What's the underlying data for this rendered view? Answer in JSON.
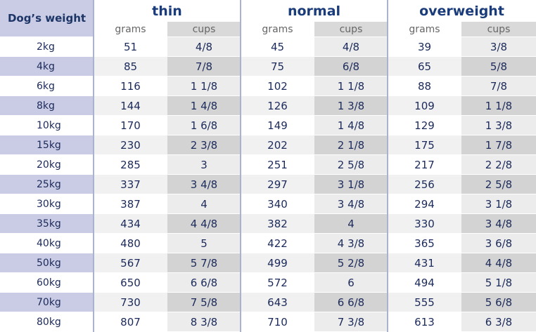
{
  "header": {
    "title": "Dog’s weight",
    "groups": [
      "thin",
      "normal",
      "overweight"
    ],
    "subheaders": [
      "grams",
      "cups"
    ]
  },
  "table": {
    "rows": [
      [
        "2kg",
        51,
        "4/8",
        45,
        "4/8",
        39,
        "3/8"
      ],
      [
        "4kg",
        85,
        "7/8",
        75,
        "6/8",
        65,
        "5/8"
      ],
      [
        "6kg",
        116,
        "1 1/8",
        102,
        "1 1/8",
        88,
        "7/8"
      ],
      [
        "8kg",
        144,
        "1 4/8",
        126,
        "1 3/8",
        109,
        "1 1/8"
      ],
      [
        "10kg",
        170,
        "1 6/8",
        149,
        "1 4/8",
        129,
        "1 3/8"
      ],
      [
        "15kg",
        230,
        "2 3/8",
        202,
        "2 1/8",
        175,
        "1 7/8"
      ],
      [
        "20kg",
        285,
        "3",
        251,
        "2 5/8",
        217,
        "2 2/8"
      ],
      [
        "25kg",
        337,
        "3 4/8",
        297,
        "3 1/8",
        256,
        "2 5/8"
      ],
      [
        "30kg",
        387,
        "4",
        340,
        "3 4/8",
        294,
        "3 1/8"
      ],
      [
        "35kg",
        434,
        "4 4/8",
        382,
        "4",
        330,
        "3 4/8"
      ],
      [
        "40kg",
        480,
        "5",
        422,
        "4 3/8",
        365,
        "3 6/8"
      ],
      [
        "50kg",
        567,
        "5 7/8",
        499,
        "5 2/8",
        431,
        "4 4/8"
      ],
      [
        "60kg",
        650,
        "6 6/8",
        572,
        "6",
        494,
        "5 1/8"
      ],
      [
        "70kg",
        730,
        "7 5/8",
        643,
        "6 6/8",
        555,
        "5 6/8"
      ],
      [
        "80kg",
        807,
        "8 3/8",
        710,
        "7 3/8",
        613,
        "6 3/8"
      ]
    ]
  }
}
